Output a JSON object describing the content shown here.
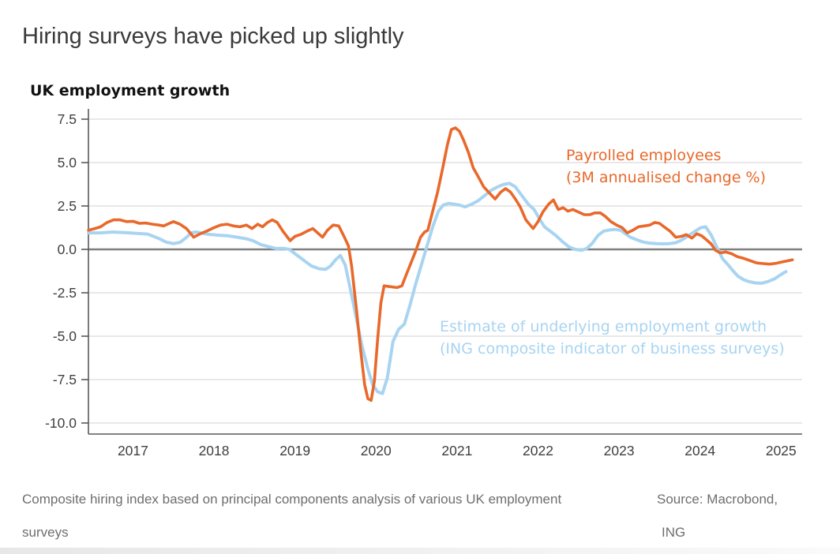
{
  "title": "Hiring surveys have picked up slightly",
  "footer": {
    "left": {
      "line1": "Composite hiring index based on principal components analysis of various UK employment",
      "line2": "surveys"
    },
    "right": {
      "line1": "Source: Macrobond,",
      "line2": "ING"
    }
  },
  "colors": {
    "grid": "#d9d9d9",
    "zero_line": "#7f7f7f",
    "axis": "#595959",
    "tick_label": "#3f3f3f",
    "payrolled_orange": "#E8692B",
    "estimate_blue": "#A8D4F1"
  },
  "chart_data": {
    "type": "line",
    "title": "UK employment growth",
    "x_axis": {
      "tick_labels": [
        "2017",
        "2018",
        "2019",
        "2020",
        "2021",
        "2022",
        "2023",
        "2024",
        "2025"
      ],
      "range_years": [
        2016.95,
        2025.76
      ],
      "grid": false
    },
    "y_axis": {
      "tick_labels": [
        "7.5",
        "5.0",
        "2.5",
        "0.0",
        "-2.5",
        "-5.0",
        "-7.5",
        "-10.0"
      ],
      "range": [
        -10.6,
        8.1
      ],
      "grid": true,
      "zero_line": true
    },
    "legend_position": "annotations-inside-plot",
    "series": [
      {
        "name": "Estimate of underlying employment growth (ING composite indicator of business surveys)",
        "label_lines": [
          "Estimate of underlying employment growth",
          "(ING composite indicator of business surveys)"
        ],
        "color": "#A8D4F1",
        "points": [
          [
            2016.95,
            0.95
          ],
          [
            2017.1,
            0.95
          ],
          [
            2017.25,
            1.0
          ],
          [
            2017.4,
            0.97
          ],
          [
            2017.55,
            0.92
          ],
          [
            2017.68,
            0.88
          ],
          [
            2017.81,
            0.65
          ],
          [
            2017.91,
            0.42
          ],
          [
            2018.0,
            0.33
          ],
          [
            2018.08,
            0.4
          ],
          [
            2018.15,
            0.65
          ],
          [
            2018.22,
            0.95
          ],
          [
            2018.28,
            1.0
          ],
          [
            2018.35,
            0.93
          ],
          [
            2018.43,
            0.87
          ],
          [
            2018.55,
            0.82
          ],
          [
            2018.67,
            0.78
          ],
          [
            2018.79,
            0.7
          ],
          [
            2018.91,
            0.6
          ],
          [
            2018.98,
            0.5
          ],
          [
            2019.08,
            0.27
          ],
          [
            2019.18,
            0.15
          ],
          [
            2019.27,
            0.05
          ],
          [
            2019.36,
            0.06
          ],
          [
            2019.43,
            0.0
          ],
          [
            2019.5,
            -0.25
          ],
          [
            2019.6,
            -0.6
          ],
          [
            2019.7,
            -0.95
          ],
          [
            2019.8,
            -1.12
          ],
          [
            2019.88,
            -1.15
          ],
          [
            2019.94,
            -0.95
          ],
          [
            2020.0,
            -0.6
          ],
          [
            2020.06,
            -0.35
          ],
          [
            2020.12,
            -0.9
          ],
          [
            2020.18,
            -2.2
          ],
          [
            2020.25,
            -3.8
          ],
          [
            2020.32,
            -5.4
          ],
          [
            2020.4,
            -6.9
          ],
          [
            2020.46,
            -7.8
          ],
          [
            2020.52,
            -8.2
          ],
          [
            2020.58,
            -8.3
          ],
          [
            2020.64,
            -7.4
          ],
          [
            2020.71,
            -5.3
          ],
          [
            2020.78,
            -4.6
          ],
          [
            2020.85,
            -4.3
          ],
          [
            2020.92,
            -3.2
          ],
          [
            2020.99,
            -2.0
          ],
          [
            2021.06,
            -0.9
          ],
          [
            2021.13,
            0.2
          ],
          [
            2021.2,
            1.3
          ],
          [
            2021.27,
            2.2
          ],
          [
            2021.33,
            2.55
          ],
          [
            2021.4,
            2.65
          ],
          [
            2021.47,
            2.6
          ],
          [
            2021.53,
            2.55
          ],
          [
            2021.6,
            2.45
          ],
          [
            2021.68,
            2.6
          ],
          [
            2021.76,
            2.8
          ],
          [
            2021.84,
            3.1
          ],
          [
            2021.92,
            3.4
          ],
          [
            2022.0,
            3.6
          ],
          [
            2022.08,
            3.75
          ],
          [
            2022.15,
            3.8
          ],
          [
            2022.22,
            3.6
          ],
          [
            2022.3,
            3.1
          ],
          [
            2022.38,
            2.6
          ],
          [
            2022.45,
            2.3
          ],
          [
            2022.52,
            1.75
          ],
          [
            2022.58,
            1.3
          ],
          [
            2022.65,
            1.05
          ],
          [
            2022.72,
            0.8
          ],
          [
            2022.8,
            0.45
          ],
          [
            2022.88,
            0.15
          ],
          [
            2022.96,
            0.0
          ],
          [
            2023.04,
            -0.05
          ],
          [
            2023.1,
            0.05
          ],
          [
            2023.17,
            0.35
          ],
          [
            2023.24,
            0.8
          ],
          [
            2023.31,
            1.05
          ],
          [
            2023.38,
            1.12
          ],
          [
            2023.45,
            1.15
          ],
          [
            2023.52,
            1.1
          ],
          [
            2023.58,
            0.9
          ],
          [
            2023.64,
            0.7
          ],
          [
            2023.72,
            0.55
          ],
          [
            2023.8,
            0.42
          ],
          [
            2023.88,
            0.36
          ],
          [
            2023.96,
            0.33
          ],
          [
            2024.04,
            0.32
          ],
          [
            2024.12,
            0.33
          ],
          [
            2024.2,
            0.38
          ],
          [
            2024.28,
            0.55
          ],
          [
            2024.36,
            0.8
          ],
          [
            2024.44,
            1.05
          ],
          [
            2024.51,
            1.25
          ],
          [
            2024.57,
            1.3
          ],
          [
            2024.64,
            0.8
          ],
          [
            2024.71,
            0.1
          ],
          [
            2024.78,
            -0.55
          ],
          [
            2024.84,
            -0.85
          ],
          [
            2024.9,
            -1.2
          ],
          [
            2024.97,
            -1.55
          ],
          [
            2025.04,
            -1.75
          ],
          [
            2025.1,
            -1.85
          ],
          [
            2025.18,
            -1.93
          ],
          [
            2025.26,
            -1.95
          ],
          [
            2025.34,
            -1.85
          ],
          [
            2025.42,
            -1.7
          ],
          [
            2025.5,
            -1.45
          ],
          [
            2025.56,
            -1.28
          ]
        ]
      },
      {
        "name": "Payrolled employees (3M annualised change %)",
        "label_lines": [
          "Payrolled employees",
          "(3M annualised change %)"
        ],
        "color": "#E8692B",
        "points": [
          [
            2016.95,
            1.1
          ],
          [
            2017.03,
            1.2
          ],
          [
            2017.1,
            1.3
          ],
          [
            2017.18,
            1.55
          ],
          [
            2017.26,
            1.7
          ],
          [
            2017.34,
            1.7
          ],
          [
            2017.42,
            1.6
          ],
          [
            2017.5,
            1.62
          ],
          [
            2017.58,
            1.5
          ],
          [
            2017.66,
            1.52
          ],
          [
            2017.74,
            1.45
          ],
          [
            2017.82,
            1.4
          ],
          [
            2017.88,
            1.35
          ],
          [
            2017.95,
            1.5
          ],
          [
            2018.0,
            1.6
          ],
          [
            2018.08,
            1.45
          ],
          [
            2018.16,
            1.2
          ],
          [
            2018.25,
            0.7
          ],
          [
            2018.33,
            0.9
          ],
          [
            2018.41,
            1.05
          ],
          [
            2018.5,
            1.25
          ],
          [
            2018.58,
            1.4
          ],
          [
            2018.66,
            1.45
          ],
          [
            2018.74,
            1.35
          ],
          [
            2018.82,
            1.3
          ],
          [
            2018.9,
            1.4
          ],
          [
            2018.97,
            1.2
          ],
          [
            2019.04,
            1.45
          ],
          [
            2019.1,
            1.3
          ],
          [
            2019.16,
            1.55
          ],
          [
            2019.22,
            1.7
          ],
          [
            2019.28,
            1.55
          ],
          [
            2019.35,
            1.05
          ],
          [
            2019.44,
            0.5
          ],
          [
            2019.5,
            0.75
          ],
          [
            2019.57,
            0.86
          ],
          [
            2019.65,
            1.05
          ],
          [
            2019.72,
            1.2
          ],
          [
            2019.78,
            0.95
          ],
          [
            2019.84,
            0.7
          ],
          [
            2019.9,
            1.1
          ],
          [
            2019.97,
            1.4
          ],
          [
            2020.04,
            1.35
          ],
          [
            2020.1,
            0.8
          ],
          [
            2020.16,
            0.2
          ],
          [
            2020.2,
            -1.0
          ],
          [
            2020.26,
            -3.5
          ],
          [
            2020.31,
            -5.8
          ],
          [
            2020.36,
            -7.8
          ],
          [
            2020.4,
            -8.6
          ],
          [
            2020.44,
            -8.7
          ],
          [
            2020.48,
            -7.6
          ],
          [
            2020.52,
            -5.2
          ],
          [
            2020.56,
            -3.1
          ],
          [
            2020.6,
            -2.1
          ],
          [
            2020.68,
            -2.15
          ],
          [
            2020.76,
            -2.2
          ],
          [
            2020.82,
            -2.1
          ],
          [
            2020.87,
            -1.5
          ],
          [
            2020.93,
            -0.8
          ],
          [
            2020.99,
            -0.1
          ],
          [
            2021.05,
            0.7
          ],
          [
            2021.1,
            1.0
          ],
          [
            2021.14,
            1.1
          ],
          [
            2021.2,
            2.2
          ],
          [
            2021.26,
            3.3
          ],
          [
            2021.32,
            4.6
          ],
          [
            2021.38,
            6.0
          ],
          [
            2021.43,
            6.9
          ],
          [
            2021.48,
            7.0
          ],
          [
            2021.53,
            6.8
          ],
          [
            2021.58,
            6.3
          ],
          [
            2021.64,
            5.6
          ],
          [
            2021.7,
            4.7
          ],
          [
            2021.76,
            4.2
          ],
          [
            2021.83,
            3.6
          ],
          [
            2021.9,
            3.25
          ],
          [
            2021.97,
            2.9
          ],
          [
            2022.04,
            3.3
          ],
          [
            2022.1,
            3.5
          ],
          [
            2022.16,
            3.3
          ],
          [
            2022.22,
            2.9
          ],
          [
            2022.28,
            2.45
          ],
          [
            2022.35,
            1.7
          ],
          [
            2022.44,
            1.2
          ],
          [
            2022.5,
            1.6
          ],
          [
            2022.56,
            2.15
          ],
          [
            2022.63,
            2.6
          ],
          [
            2022.69,
            2.85
          ],
          [
            2022.75,
            2.3
          ],
          [
            2022.81,
            2.4
          ],
          [
            2022.87,
            2.2
          ],
          [
            2022.93,
            2.3
          ],
          [
            2023.0,
            2.15
          ],
          [
            2023.07,
            2.0
          ],
          [
            2023.14,
            2.0
          ],
          [
            2023.2,
            2.1
          ],
          [
            2023.27,
            2.1
          ],
          [
            2023.33,
            1.9
          ],
          [
            2023.4,
            1.6
          ],
          [
            2023.47,
            1.4
          ],
          [
            2023.54,
            1.25
          ],
          [
            2023.6,
            0.95
          ],
          [
            2023.67,
            1.1
          ],
          [
            2023.74,
            1.3
          ],
          [
            2023.81,
            1.35
          ],
          [
            2023.88,
            1.4
          ],
          [
            2023.94,
            1.55
          ],
          [
            2024.0,
            1.5
          ],
          [
            2024.07,
            1.25
          ],
          [
            2024.13,
            1.05
          ],
          [
            2024.2,
            0.7
          ],
          [
            2024.27,
            0.75
          ],
          [
            2024.33,
            0.85
          ],
          [
            2024.4,
            0.65
          ],
          [
            2024.46,
            0.9
          ],
          [
            2024.52,
            0.78
          ],
          [
            2024.58,
            0.55
          ],
          [
            2024.64,
            0.3
          ],
          [
            2024.69,
            -0.05
          ],
          [
            2024.75,
            -0.2
          ],
          [
            2024.82,
            -0.15
          ],
          [
            2024.89,
            -0.25
          ],
          [
            2024.96,
            -0.42
          ],
          [
            2025.04,
            -0.52
          ],
          [
            2025.12,
            -0.65
          ],
          [
            2025.2,
            -0.78
          ],
          [
            2025.28,
            -0.82
          ],
          [
            2025.36,
            -0.85
          ],
          [
            2025.44,
            -0.8
          ],
          [
            2025.52,
            -0.72
          ],
          [
            2025.64,
            -0.6
          ]
        ]
      }
    ]
  }
}
